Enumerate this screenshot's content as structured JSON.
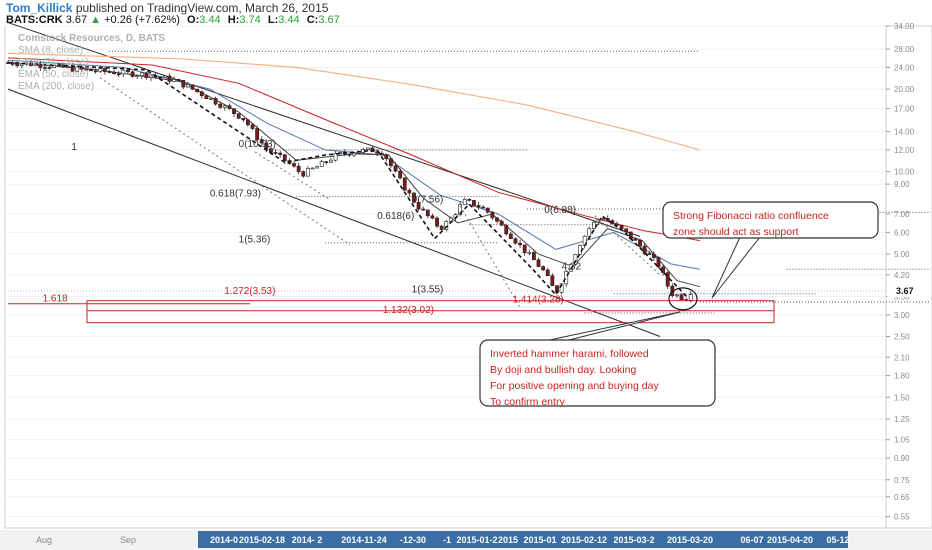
{
  "header": {
    "author": "Tom_Killick",
    "published": "published on TradingView.com, March 26, 2015",
    "symbol": "BATS:CRK",
    "last": "3.67",
    "change": "+0.26 (+7.62%)",
    "o_label": "O:",
    "o": "3.44",
    "h_label": "H:",
    "h": "3.74",
    "l_label": "L:",
    "l": "3.44",
    "c_label": "C:",
    "c": "3.67",
    "up_color": "#2aa33a"
  },
  "legend": [
    "Comstock Resources, D, BATS",
    "SMA (8, close)",
    "EMA (21, close)",
    "EMA (50, close)",
    "EMA (200, close)"
  ],
  "chart_data": {
    "type": "candlestick",
    "y_scale": "log",
    "ylim": [
      0.5,
      34
    ],
    "y_ticks": [
      "34.00",
      "28.00",
      "24.00",
      "20.00",
      "17.00",
      "14.00",
      "12.00",
      "10.00",
      "9.00",
      "7.00",
      "6.00",
      "5.00",
      "4.20",
      "3.50",
      "3.00",
      "2.50",
      "2.10",
      "1.80",
      "1.50",
      "1.25",
      "1.05",
      "0.90",
      "0.75",
      "0.65",
      "0.55"
    ],
    "y_tick_values": [
      34,
      28,
      24,
      20,
      17,
      14,
      12,
      10,
      9,
      7,
      6,
      5,
      4.2,
      3.5,
      3.0,
      2.5,
      2.1,
      1.8,
      1.5,
      1.25,
      1.05,
      0.9,
      0.75,
      0.65,
      0.55
    ],
    "last_price_label": "3.67",
    "x_tick_labels": [
      "Aug",
      "Sep",
      "2014-0",
      "2015-02-18",
      "2014- 2",
      "2014-11-24",
      "-12-30",
      "-1",
      "2015-01-2",
      "2015",
      "2015-01",
      "2015-02-12",
      "2015-03-2",
      "2015-03-20",
      "06-07",
      "2015-04-20",
      "05-12"
    ],
    "close_path": [
      [
        0,
        25
      ],
      [
        12,
        24.5
      ],
      [
        26,
        23.5
      ],
      [
        38,
        23
      ],
      [
        48,
        22.6
      ],
      [
        58,
        21.5
      ],
      [
        64,
        20
      ],
      [
        70,
        18.5
      ],
      [
        76,
        17
      ],
      [
        82,
        15.5
      ],
      [
        86,
        13.5
      ],
      [
        90,
        12
      ],
      [
        96,
        11
      ],
      [
        102,
        9.8
      ],
      [
        108,
        10.5
      ],
      [
        114,
        11.5
      ],
      [
        120,
        11.8
      ],
      [
        126,
        12
      ],
      [
        130,
        11.8
      ],
      [
        134,
        10
      ],
      [
        138,
        8.6
      ],
      [
        142,
        7.5
      ],
      [
        146,
        6.8
      ],
      [
        150,
        6.2
      ],
      [
        154,
        6.8
      ],
      [
        158,
        7.8
      ],
      [
        162,
        7.6
      ],
      [
        166,
        7.2
      ],
      [
        170,
        6.5
      ],
      [
        174,
        5.9
      ],
      [
        178,
        5.3
      ],
      [
        182,
        4.8
      ],
      [
        186,
        4.3
      ],
      [
        190,
        3.6
      ],
      [
        194,
        4.4
      ],
      [
        198,
        5.4
      ],
      [
        202,
        6.3
      ],
      [
        206,
        6.88
      ],
      [
        210,
        6.4
      ],
      [
        214,
        6.0
      ],
      [
        218,
        5.5
      ],
      [
        222,
        5.0
      ],
      [
        226,
        4.5
      ],
      [
        228,
        4.0
      ],
      [
        230,
        3.6
      ],
      [
        233,
        3.5
      ],
      [
        235,
        3.44
      ],
      [
        237,
        3.67
      ]
    ],
    "sma8_path": [
      [
        0,
        25
      ],
      [
        30,
        23.6
      ],
      [
        60,
        21.3
      ],
      [
        80,
        16.5
      ],
      [
        100,
        11
      ],
      [
        120,
        11.6
      ],
      [
        132,
        11.5
      ],
      [
        144,
        8
      ],
      [
        156,
        6.5
      ],
      [
        168,
        7
      ],
      [
        184,
        5
      ],
      [
        196,
        4.5
      ],
      [
        208,
        6.2
      ],
      [
        220,
        5.6
      ],
      [
        232,
        4.0
      ],
      [
        240,
        3.8
      ]
    ],
    "ema21_path": [
      [
        0,
        25.5
      ],
      [
        40,
        24
      ],
      [
        70,
        20
      ],
      [
        90,
        15
      ],
      [
        110,
        12
      ],
      [
        130,
        11.5
      ],
      [
        150,
        8.2
      ],
      [
        170,
        7
      ],
      [
        190,
        5.2
      ],
      [
        210,
        6
      ],
      [
        230,
        4.6
      ],
      [
        240,
        4.4
      ]
    ],
    "ema50_path": [
      [
        0,
        26
      ],
      [
        50,
        24.5
      ],
      [
        80,
        21
      ],
      [
        110,
        15.5
      ],
      [
        140,
        11.5
      ],
      [
        170,
        8.4
      ],
      [
        200,
        6.9
      ],
      [
        220,
        6.1
      ],
      [
        240,
        5.6
      ]
    ],
    "ema200_path": [
      [
        0,
        27
      ],
      [
        60,
        25.8
      ],
      [
        100,
        24
      ],
      [
        140,
        20.8
      ],
      [
        180,
        17.5
      ],
      [
        215,
        14.2
      ],
      [
        240,
        12
      ]
    ],
    "series": [
      {
        "name": "SMA (8, close)",
        "color": "#2b2b2b"
      },
      {
        "name": "EMA (21, close)",
        "color": "#3f6ea8"
      },
      {
        "name": "EMA (50, close)",
        "color": "#cc2222"
      },
      {
        "name": "EMA (200, close)",
        "color": "#f0a060"
      }
    ],
    "fib_labels": [
      {
        "text": "1",
        "t": 22,
        "v": 12.0
      },
      {
        "text": "0(10.93)",
        "t": 80,
        "v": 12.3
      },
      {
        "text": "0.618(7.93)",
        "t": 70,
        "v": 8.1
      },
      {
        "text": "1(5.36)",
        "t": 80,
        "v": 5.5
      },
      {
        "text": "0(7.56)",
        "t": 140,
        "v": 7.7
      },
      {
        "text": "0.618(6)",
        "t": 128,
        "v": 6.7
      },
      {
        "text": "0(6.88)",
        "t": 186,
        "v": 7.05
      },
      {
        "text": "4.32",
        "t": 192,
        "v": 4.4
      },
      {
        "text": "1(3.55)",
        "t": 140,
        "v": 3.62
      },
      {
        "text": "1.272(3.53)",
        "t": 75,
        "v": 3.58
      },
      {
        "text": "1.414(3.28)",
        "t": 175,
        "v": 3.33
      },
      {
        "text": "1.132(3.02)",
        "t": 130,
        "v": 3.05
      },
      {
        "text": "1.618",
        "t": 12,
        "v": 3.35
      }
    ],
    "annotations": [
      {
        "lines": [
          "Strong Fibonacci ratio confluence",
          "zone should act as support"
        ]
      },
      {
        "lines": [
          "Inverted hammer harami, followed",
          "By doji and bullish day. Looking",
          "For positive opening and buying day",
          "To confirm entry"
        ]
      }
    ]
  }
}
